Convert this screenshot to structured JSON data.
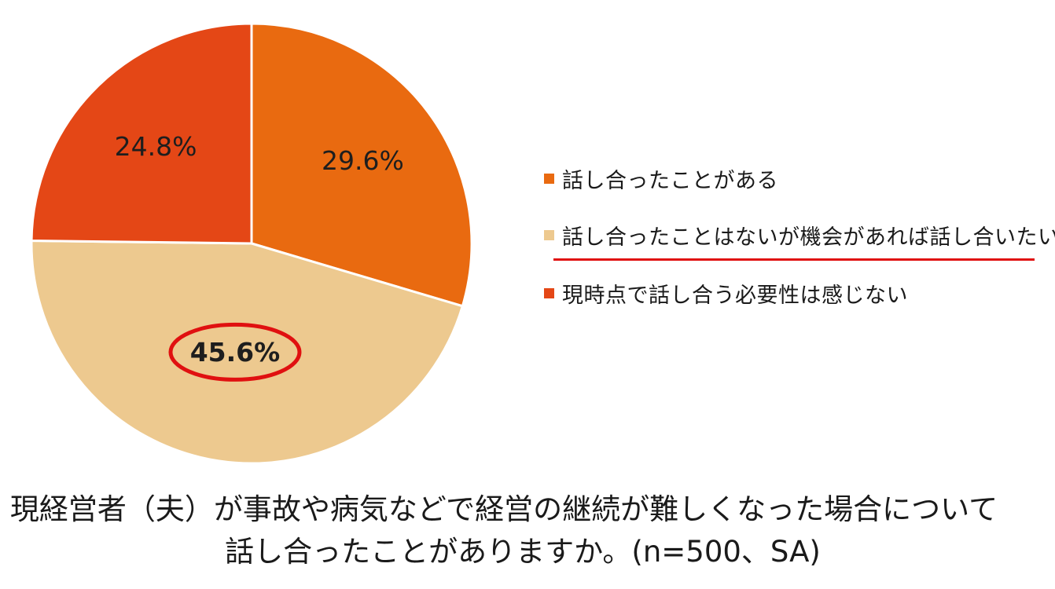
{
  "chart_data": {
    "type": "pie",
    "categories": [
      "話し合ったことがある",
      "話し合ったことはないが機会があれば話し合いたい",
      "現時点で話し合う必要性は感じない"
    ],
    "values": [
      29.6,
      45.6,
      24.8
    ],
    "value_labels": [
      "29.6%",
      "45.6%",
      "24.8%"
    ],
    "colors": [
      "#e96a10",
      "#edc98f",
      "#e44716"
    ],
    "start_angle_deg": 0,
    "direction": "clockwise",
    "highlighted_category": "話し合ったことはないが機会があれば話し合いたい",
    "highlight_color": "#e01010",
    "legend_position": "right"
  },
  "caption": {
    "line1": "現経営者（夫）が事故や病気などで経営の継続が難しくなった場合について",
    "line2": "話し合ったことがありますか。(n=500、SA)"
  }
}
